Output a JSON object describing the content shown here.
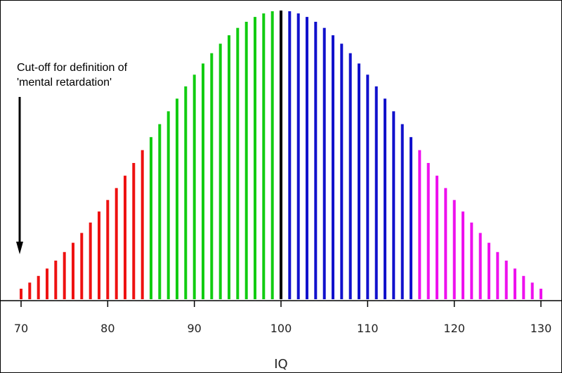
{
  "chart_data": {
    "type": "bar",
    "xlabel": "IQ",
    "xlim": [
      70,
      130
    ],
    "xticks": [
      70,
      80,
      90,
      100,
      110,
      120,
      130
    ],
    "ylim": [
      0,
      1
    ],
    "distribution": {
      "mean": 100,
      "sd": 15
    },
    "x": [
      70,
      71,
      72,
      73,
      74,
      75,
      76,
      77,
      78,
      79,
      80,
      81,
      82,
      83,
      84,
      85,
      86,
      87,
      88,
      89,
      90,
      91,
      92,
      93,
      94,
      95,
      96,
      97,
      98,
      99,
      100,
      101,
      102,
      103,
      104,
      105,
      106,
      107,
      108,
      109,
      110,
      111,
      112,
      113,
      114,
      115,
      116,
      117,
      118,
      119,
      120,
      121,
      122,
      123,
      124,
      125,
      126,
      127,
      128,
      129,
      130
    ],
    "series": [
      {
        "range": [
          70,
          84
        ],
        "color": "#ee1111"
      },
      {
        "range": [
          85,
          99
        ],
        "color": "#11cc11"
      },
      {
        "range": [
          100,
          100
        ],
        "color": "#000000"
      },
      {
        "range": [
          101,
          115
        ],
        "color": "#1111cc"
      },
      {
        "range": [
          116,
          130
        ],
        "color": "#ee11ee"
      }
    ],
    "annotation": {
      "line1": "Cut-off for definition of",
      "line2": "'mental retardation'",
      "points_to": 70
    },
    "grid": false
  }
}
